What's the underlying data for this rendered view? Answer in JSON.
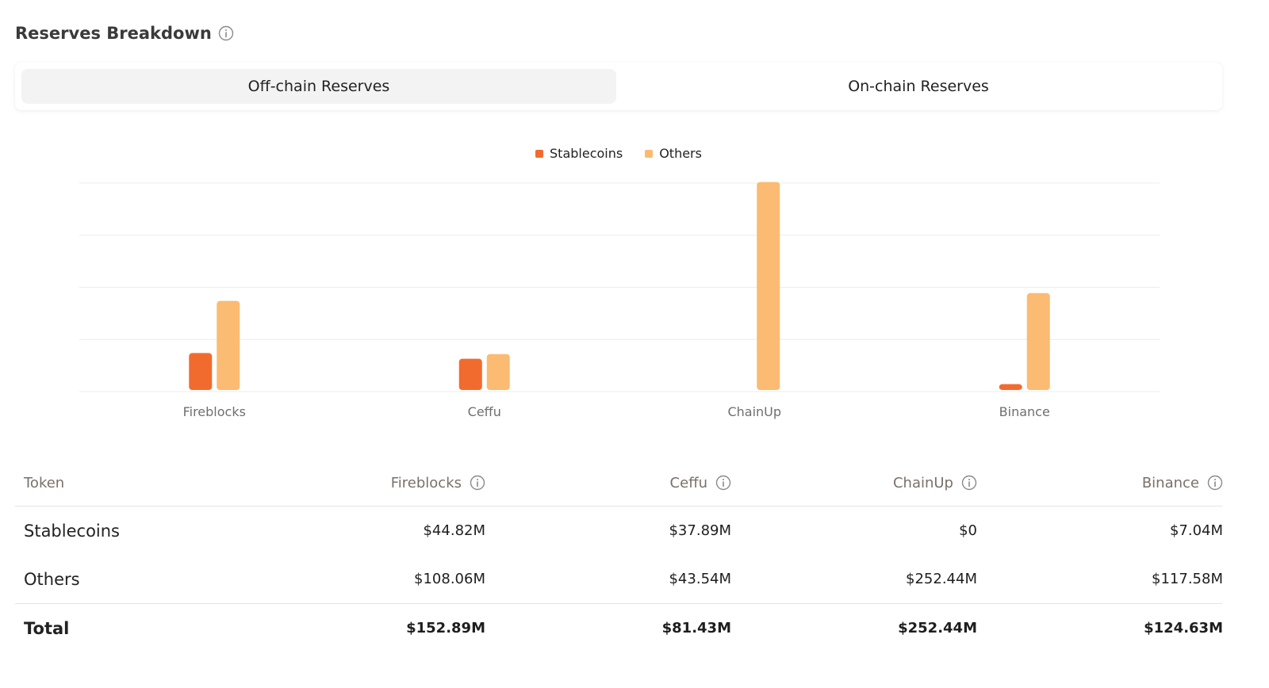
{
  "header": {
    "title": "Reserves Breakdown"
  },
  "tabs": [
    {
      "label": "Off-chain Reserves",
      "active": true
    },
    {
      "label": "On-chain Reserves",
      "active": false
    }
  ],
  "colors": {
    "stablecoins": "#f26b2e",
    "others": "#fbbb73",
    "grid": "#ececec",
    "axis_text": "#6f6f6f"
  },
  "icons": {
    "info": "info-circle-icon"
  },
  "chart_data": {
    "type": "bar",
    "categories": [
      "Fireblocks",
      "Ceffu",
      "ChainUp",
      "Binance"
    ],
    "series": [
      {
        "name": "Stablecoins",
        "values": [
          44.82,
          37.89,
          0,
          7.04
        ]
      },
      {
        "name": "Others",
        "values": [
          108.06,
          43.54,
          252.44,
          117.58
        ]
      }
    ],
    "ylim": [
      0,
      253
    ],
    "grid": true,
    "legend": "top-center"
  },
  "table": {
    "headers": [
      "Token",
      "Fireblocks",
      "Ceffu",
      "ChainUp",
      "Binance"
    ],
    "rows": [
      {
        "label": "Stablecoins",
        "values": [
          "$44.82M",
          "$37.89M",
          "$0",
          "$7.04M"
        ]
      },
      {
        "label": "Others",
        "values": [
          "$108.06M",
          "$43.54M",
          "$252.44M",
          "$117.58M"
        ]
      }
    ],
    "total": {
      "label": "Total",
      "values": [
        "$152.89M",
        "$81.43M",
        "$252.44M",
        "$124.63M"
      ]
    }
  }
}
